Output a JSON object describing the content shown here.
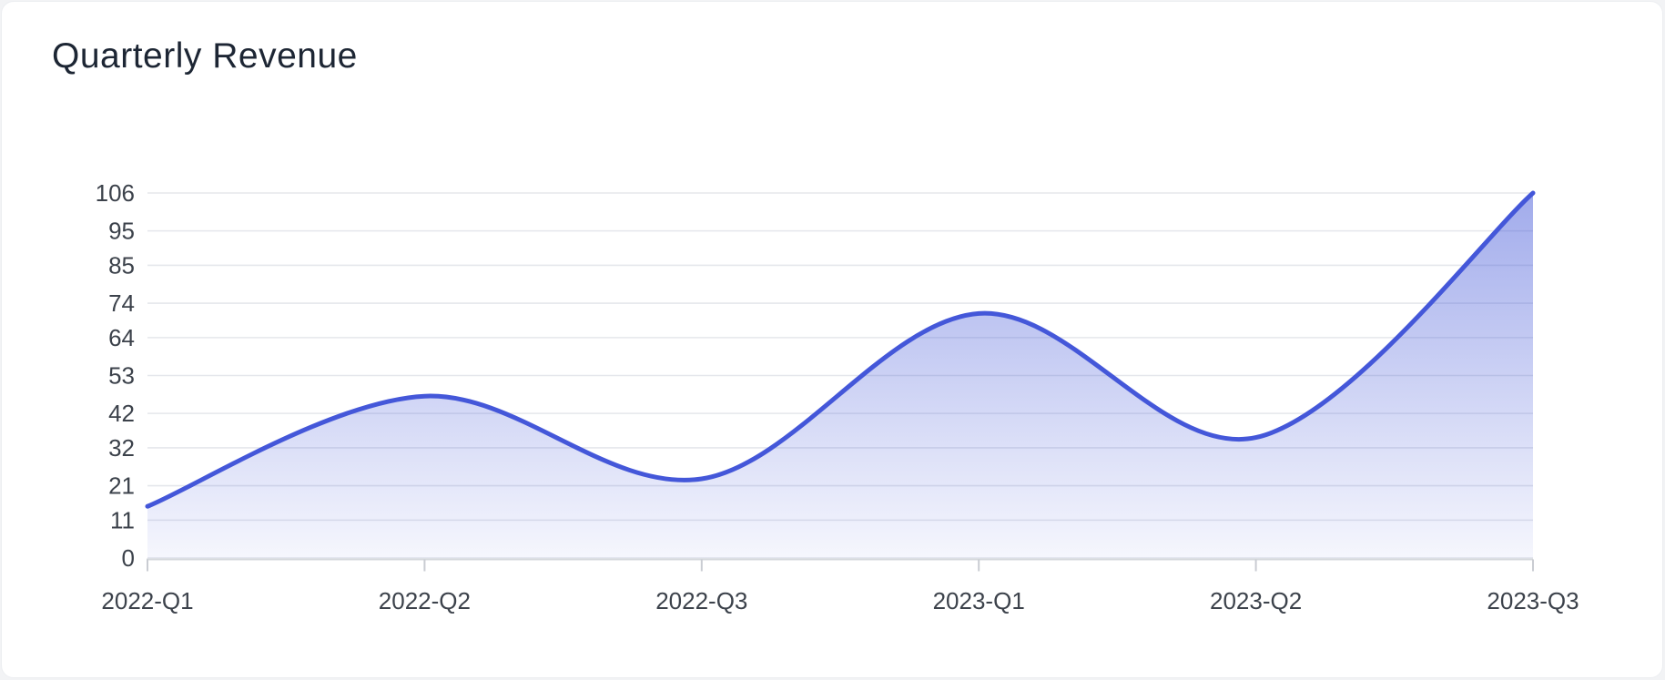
{
  "header": {
    "title": "Quarterly Revenue"
  },
  "chart_data": {
    "type": "area",
    "title": "Quarterly Revenue",
    "categories": [
      "2022-Q1",
      "2022-Q2",
      "2022-Q3",
      "2023-Q1",
      "2023-Q2",
      "2023-Q3"
    ],
    "values": [
      15,
      47,
      23,
      71,
      35,
      106
    ],
    "xlabel": "",
    "ylabel": "",
    "ylim": [
      0,
      106
    ],
    "y_ticks": [
      0,
      11,
      21,
      32,
      42,
      53,
      64,
      74,
      85,
      95,
      106
    ],
    "grid": true,
    "legend": false,
    "smooth": true,
    "colors": {
      "line": "#4457d9",
      "area_top": "rgba(68,88,216,0.50)",
      "area_bottom": "rgba(68,88,216,0.05)",
      "gridline": "#e5e7ec",
      "axis_line": "#d4d7dc",
      "tick": "#c9ccd2",
      "axis_label": "#3c424b",
      "title": "#1d2634"
    }
  }
}
